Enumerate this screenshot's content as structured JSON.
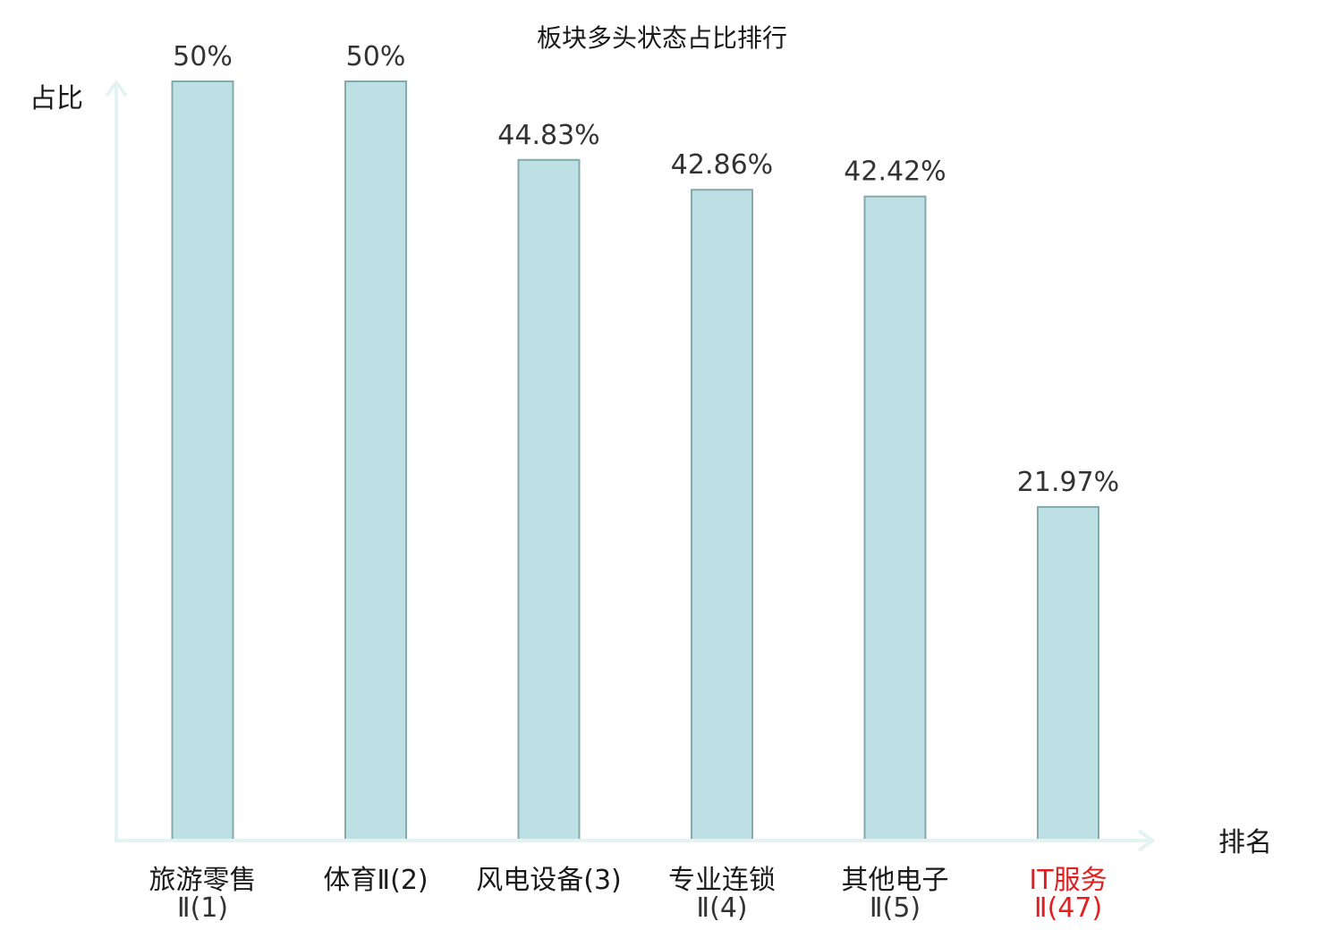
{
  "chart_data": {
    "type": "bar",
    "title": "板块多头状态占比排行",
    "ylabel": "占比",
    "xlabel": "排名",
    "categories": [
      {
        "line1": "旅游零售",
        "line2": "Ⅱ(1)",
        "highlight": false
      },
      {
        "line1": "体育Ⅱ(2)",
        "line2": "",
        "highlight": false
      },
      {
        "line1": "风电设备(3)",
        "line2": "",
        "highlight": false
      },
      {
        "line1": "专业连锁",
        "line2": "Ⅱ(4)",
        "highlight": false
      },
      {
        "line1": "其他电子",
        "line2": "Ⅱ(5)",
        "highlight": false
      },
      {
        "line1": "IT服务",
        "line2": "Ⅱ(47)",
        "highlight": true
      }
    ],
    "values": [
      50,
      50,
      44.83,
      42.86,
      42.42,
      21.97
    ],
    "value_labels": [
      "50%",
      "50%",
      "44.83%",
      "42.86%",
      "42.42%",
      "21.97%"
    ],
    "ylim": [
      0,
      50
    ],
    "grid": false,
    "colors": {
      "bar_fill": "#bce0e3",
      "bar_stroke": "#86a9ab",
      "axis": "#e3f3f1",
      "highlight_text": "#e02020"
    }
  }
}
